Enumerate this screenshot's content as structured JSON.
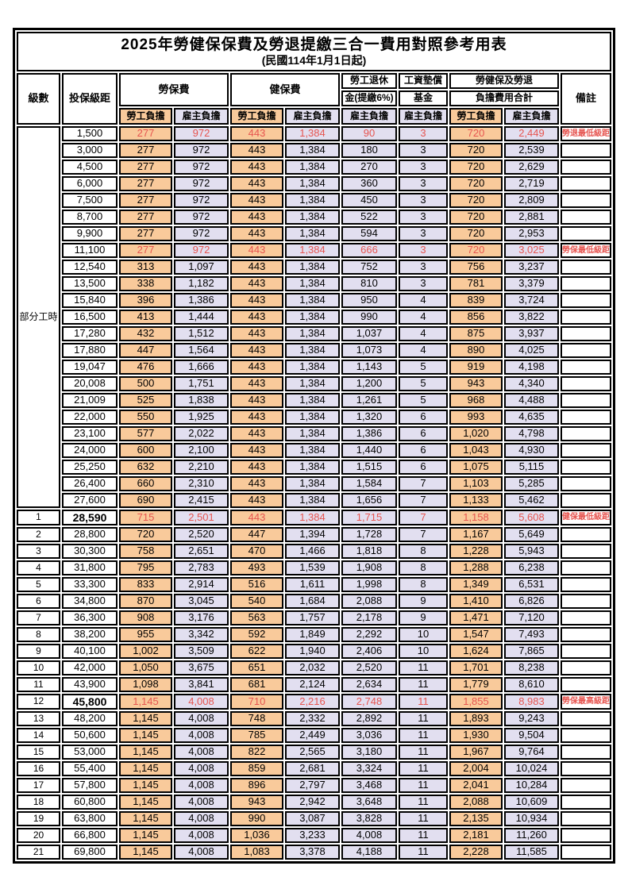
{
  "title": "2025年勞健保保費及勞退提繳三合一費用對照參考用表",
  "subtitle": "(民國114年1月1日起)",
  "header": {
    "level": "級數",
    "bracket": "投保級距",
    "labor_ins": "勞保費",
    "health_ins": "健保費",
    "pension_line1": "勞工退休",
    "pension_line2": "金(提繳6%)",
    "wage_fund_line1": "工資墊償",
    "wage_fund_line2": "基金",
    "total_line1": "勞健保及勞退",
    "total_line2": "負擔費用合計",
    "remark": "備註",
    "worker": "勞工負擔",
    "employer": "雇主負擔"
  },
  "part_time": {
    "label": "部分工時",
    "row_count": 23
  },
  "colors": {
    "worker_bg": "#F9CA9B",
    "employer_bg": "#E2DFF0",
    "highlight_red": "#E65550"
  },
  "rows": [
    {
      "bracket": "1,500",
      "v": [
        "277",
        "972",
        "443",
        "1,384",
        "90",
        "3",
        "720",
        "2,449"
      ],
      "remark": "勞退最低級距",
      "red": true
    },
    {
      "bracket": "3,000",
      "v": [
        "277",
        "972",
        "443",
        "1,384",
        "180",
        "3",
        "720",
        "2,539"
      ]
    },
    {
      "bracket": "4,500",
      "v": [
        "277",
        "972",
        "443",
        "1,384",
        "270",
        "3",
        "720",
        "2,629"
      ]
    },
    {
      "bracket": "6,000",
      "v": [
        "277",
        "972",
        "443",
        "1,384",
        "360",
        "3",
        "720",
        "2,719"
      ]
    },
    {
      "bracket": "7,500",
      "v": [
        "277",
        "972",
        "443",
        "1,384",
        "450",
        "3",
        "720",
        "2,809"
      ]
    },
    {
      "bracket": "8,700",
      "v": [
        "277",
        "972",
        "443",
        "1,384",
        "522",
        "3",
        "720",
        "2,881"
      ]
    },
    {
      "bracket": "9,900",
      "v": [
        "277",
        "972",
        "443",
        "1,384",
        "594",
        "3",
        "720",
        "2,953"
      ]
    },
    {
      "bracket": "11,100",
      "v": [
        "277",
        "972",
        "443",
        "1,384",
        "666",
        "3",
        "720",
        "3,025"
      ],
      "remark": "勞保最低級距",
      "red": true
    },
    {
      "bracket": "12,540",
      "v": [
        "313",
        "1,097",
        "443",
        "1,384",
        "752",
        "3",
        "756",
        "3,237"
      ]
    },
    {
      "bracket": "13,500",
      "v": [
        "338",
        "1,182",
        "443",
        "1,384",
        "810",
        "3",
        "781",
        "3,379"
      ]
    },
    {
      "bracket": "15,840",
      "v": [
        "396",
        "1,386",
        "443",
        "1,384",
        "950",
        "4",
        "839",
        "3,724"
      ]
    },
    {
      "bracket": "16,500",
      "v": [
        "413",
        "1,444",
        "443",
        "1,384",
        "990",
        "4",
        "856",
        "3,822"
      ]
    },
    {
      "bracket": "17,280",
      "v": [
        "432",
        "1,512",
        "443",
        "1,384",
        "1,037",
        "4",
        "875",
        "3,937"
      ]
    },
    {
      "bracket": "17,880",
      "v": [
        "447",
        "1,564",
        "443",
        "1,384",
        "1,073",
        "4",
        "890",
        "4,025"
      ]
    },
    {
      "bracket": "19,047",
      "v": [
        "476",
        "1,666",
        "443",
        "1,384",
        "1,143",
        "5",
        "919",
        "4,198"
      ]
    },
    {
      "bracket": "20,008",
      "v": [
        "500",
        "1,751",
        "443",
        "1,384",
        "1,200",
        "5",
        "943",
        "4,340"
      ]
    },
    {
      "bracket": "21,009",
      "v": [
        "525",
        "1,838",
        "443",
        "1,384",
        "1,261",
        "5",
        "968",
        "4,488"
      ]
    },
    {
      "bracket": "22,000",
      "v": [
        "550",
        "1,925",
        "443",
        "1,384",
        "1,320",
        "6",
        "993",
        "4,635"
      ]
    },
    {
      "bracket": "23,100",
      "v": [
        "577",
        "2,022",
        "443",
        "1,384",
        "1,386",
        "6",
        "1,020",
        "4,798"
      ]
    },
    {
      "bracket": "24,000",
      "v": [
        "600",
        "2,100",
        "443",
        "1,384",
        "1,440",
        "6",
        "1,043",
        "4,930"
      ]
    },
    {
      "bracket": "25,250",
      "v": [
        "632",
        "2,210",
        "443",
        "1,384",
        "1,515",
        "6",
        "1,075",
        "5,115"
      ]
    },
    {
      "bracket": "26,400",
      "v": [
        "660",
        "2,310",
        "443",
        "1,384",
        "1,584",
        "7",
        "1,103",
        "5,285"
      ]
    },
    {
      "bracket": "27,600",
      "v": [
        "690",
        "2,415",
        "443",
        "1,384",
        "1,656",
        "7",
        "1,133",
        "5,462"
      ]
    },
    {
      "level": "1",
      "bracket": "28,590",
      "v": [
        "715",
        "2,501",
        "443",
        "1,384",
        "1,715",
        "7",
        "1,158",
        "5,608"
      ],
      "remark": "健保最低級距",
      "red": true,
      "bold": true
    },
    {
      "level": "2",
      "bracket": "28,800",
      "v": [
        "720",
        "2,520",
        "447",
        "1,394",
        "1,728",
        "7",
        "1,167",
        "5,649"
      ]
    },
    {
      "level": "3",
      "bracket": "30,300",
      "v": [
        "758",
        "2,651",
        "470",
        "1,466",
        "1,818",
        "8",
        "1,228",
        "5,943"
      ]
    },
    {
      "level": "4",
      "bracket": "31,800",
      "v": [
        "795",
        "2,783",
        "493",
        "1,539",
        "1,908",
        "8",
        "1,288",
        "6,238"
      ]
    },
    {
      "level": "5",
      "bracket": "33,300",
      "v": [
        "833",
        "2,914",
        "516",
        "1,611",
        "1,998",
        "8",
        "1,349",
        "6,531"
      ]
    },
    {
      "level": "6",
      "bracket": "34,800",
      "v": [
        "870",
        "3,045",
        "540",
        "1,684",
        "2,088",
        "9",
        "1,410",
        "6,826"
      ]
    },
    {
      "level": "7",
      "bracket": "36,300",
      "v": [
        "908",
        "3,176",
        "563",
        "1,757",
        "2,178",
        "9",
        "1,471",
        "7,120"
      ]
    },
    {
      "level": "8",
      "bracket": "38,200",
      "v": [
        "955",
        "3,342",
        "592",
        "1,849",
        "2,292",
        "10",
        "1,547",
        "7,493"
      ]
    },
    {
      "level": "9",
      "bracket": "40,100",
      "v": [
        "1,002",
        "3,509",
        "622",
        "1,940",
        "2,406",
        "10",
        "1,624",
        "7,865"
      ]
    },
    {
      "level": "10",
      "bracket": "42,000",
      "v": [
        "1,050",
        "3,675",
        "651",
        "2,032",
        "2,520",
        "11",
        "1,701",
        "8,238"
      ]
    },
    {
      "level": "11",
      "bracket": "43,900",
      "v": [
        "1,098",
        "3,841",
        "681",
        "2,124",
        "2,634",
        "11",
        "1,779",
        "8,610"
      ]
    },
    {
      "level": "12",
      "bracket": "45,800",
      "v": [
        "1,145",
        "4,008",
        "710",
        "2,216",
        "2,748",
        "11",
        "1,855",
        "8,983"
      ],
      "remark": "勞保最高級距",
      "red": true,
      "bold": true
    },
    {
      "level": "13",
      "bracket": "48,200",
      "v": [
        "1,145",
        "4,008",
        "748",
        "2,332",
        "2,892",
        "11",
        "1,893",
        "9,243"
      ]
    },
    {
      "level": "14",
      "bracket": "50,600",
      "v": [
        "1,145",
        "4,008",
        "785",
        "2,449",
        "3,036",
        "11",
        "1,930",
        "9,504"
      ]
    },
    {
      "level": "15",
      "bracket": "53,000",
      "v": [
        "1,145",
        "4,008",
        "822",
        "2,565",
        "3,180",
        "11",
        "1,967",
        "9,764"
      ]
    },
    {
      "level": "16",
      "bracket": "55,400",
      "v": [
        "1,145",
        "4,008",
        "859",
        "2,681",
        "3,324",
        "11",
        "2,004",
        "10,024"
      ]
    },
    {
      "level": "17",
      "bracket": "57,800",
      "v": [
        "1,145",
        "4,008",
        "896",
        "2,797",
        "3,468",
        "11",
        "2,041",
        "10,284"
      ]
    },
    {
      "level": "18",
      "bracket": "60,800",
      "v": [
        "1,145",
        "4,008",
        "943",
        "2,942",
        "3,648",
        "11",
        "2,088",
        "10,609"
      ]
    },
    {
      "level": "19",
      "bracket": "63,800",
      "v": [
        "1,145",
        "4,008",
        "990",
        "3,087",
        "3,828",
        "11",
        "2,135",
        "10,934"
      ]
    },
    {
      "level": "20",
      "bracket": "66,800",
      "v": [
        "1,145",
        "4,008",
        "1,036",
        "3,233",
        "4,008",
        "11",
        "2,181",
        "11,260"
      ]
    },
    {
      "level": "21",
      "bracket": "69,800",
      "v": [
        "1,145",
        "4,008",
        "1,083",
        "3,378",
        "4,188",
        "11",
        "2,228",
        "11,585"
      ]
    }
  ]
}
